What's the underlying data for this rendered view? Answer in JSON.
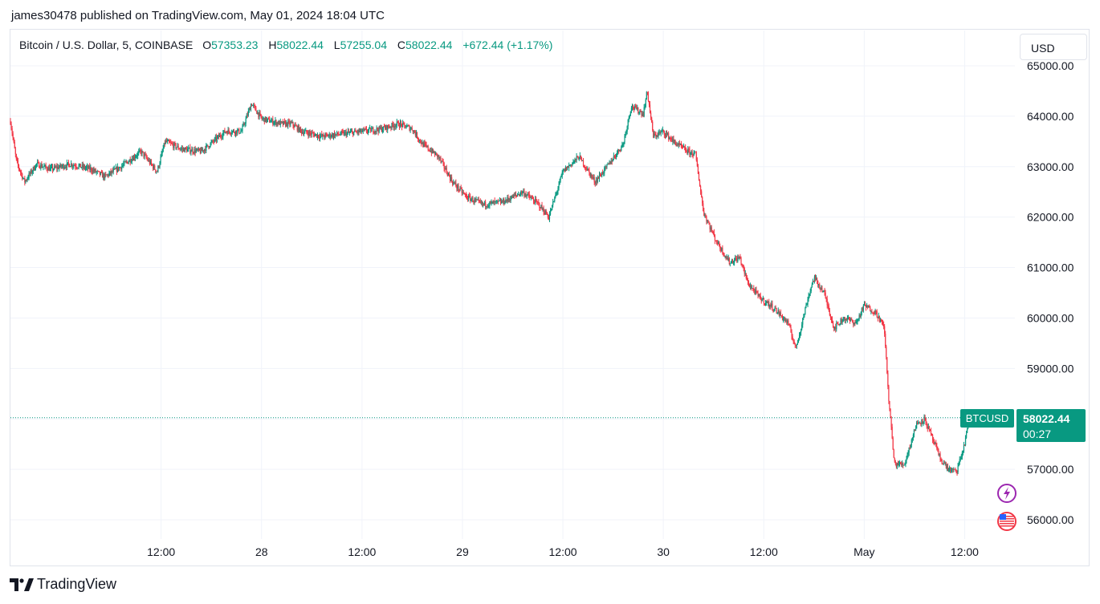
{
  "header": {
    "published_line": "james30478 published on TradingView.com, May 01, 2024 18:04 UTC"
  },
  "legend": {
    "symbol": "Bitcoin / U.S. Dollar, 5, COINBASE",
    "open_label": "O",
    "open": "57353.23",
    "high_label": "H",
    "high": "58022.44",
    "low_label": "L",
    "low": "57255.04",
    "close_label": "C",
    "close": "58022.44",
    "change": "+672.44 (+1.17%)"
  },
  "currency_button": "USD",
  "price_tag": {
    "symbol": "BTCUSD",
    "price": "58022.44",
    "countdown": "00:27"
  },
  "footer": {
    "brand": "TradingView"
  },
  "colors": {
    "up": "#089981",
    "down": "#f23645",
    "grid": "#f0f3fa",
    "text": "#131722"
  },
  "chart_data": {
    "type": "candlestick",
    "title": "Bitcoin / U.S. Dollar, 5, COINBASE",
    "ylim": [
      55800,
      65100
    ],
    "y_ticks": [
      56000,
      57000,
      58000,
      59000,
      60000,
      61000,
      62000,
      63000,
      64000,
      65000
    ],
    "y_tick_labels": [
      "56000.00",
      "57000.00",
      "58000.00",
      "59000.00",
      "60000.00",
      "61000.00",
      "62000.00",
      "63000.00",
      "64000.00",
      "65000.00"
    ],
    "x_ticks": [
      {
        "label": "12:00",
        "t": 0.5
      },
      {
        "label": "28",
        "t": 1.0
      },
      {
        "label": "12:00",
        "t": 1.5
      },
      {
        "label": "29",
        "t": 2.0
      },
      {
        "label": "12:00",
        "t": 2.5
      },
      {
        "label": "30",
        "t": 3.0
      },
      {
        "label": "12:00",
        "t": 3.5
      },
      {
        "label": "May",
        "t": 4.0
      },
      {
        "label": "12:00",
        "t": 4.5
      }
    ],
    "x_range": [
      -0.25,
      4.75
    ],
    "last_price": 58022.44,
    "grid": true,
    "path": [
      [
        -0.25,
        63900
      ],
      [
        -0.22,
        63100
      ],
      [
        -0.18,
        62700
      ],
      [
        -0.12,
        63050
      ],
      [
        -0.05,
        62950
      ],
      [
        0.05,
        63050
      ],
      [
        0.15,
        62950
      ],
      [
        0.22,
        62800
      ],
      [
        0.3,
        63000
      ],
      [
        0.4,
        63300
      ],
      [
        0.48,
        62900
      ],
      [
        0.52,
        63500
      ],
      [
        0.6,
        63350
      ],
      [
        0.7,
        63300
      ],
      [
        0.82,
        63700
      ],
      [
        0.9,
        63700
      ],
      [
        0.95,
        64250
      ],
      [
        1.0,
        63950
      ],
      [
        1.1,
        63850
      ],
      [
        1.15,
        63850
      ],
      [
        1.2,
        63700
      ],
      [
        1.3,
        63600
      ],
      [
        1.4,
        63650
      ],
      [
        1.5,
        63700
      ],
      [
        1.6,
        63750
      ],
      [
        1.68,
        63850
      ],
      [
        1.75,
        63750
      ],
      [
        1.8,
        63450
      ],
      [
        1.88,
        63200
      ],
      [
        1.95,
        62700
      ],
      [
        2.02,
        62400
      ],
      [
        2.1,
        62250
      ],
      [
        2.2,
        62300
      ],
      [
        2.3,
        62500
      ],
      [
        2.38,
        62250
      ],
      [
        2.43,
        62000
      ],
      [
        2.5,
        62900
      ],
      [
        2.58,
        63200
      ],
      [
        2.66,
        62700
      ],
      [
        2.72,
        63000
      ],
      [
        2.8,
        63450
      ],
      [
        2.84,
        64200
      ],
      [
        2.9,
        64050
      ],
      [
        2.92,
        64500
      ],
      [
        2.95,
        63600
      ],
      [
        3.0,
        63700
      ],
      [
        3.05,
        63500
      ],
      [
        3.12,
        63300
      ],
      [
        3.16,
        63250
      ],
      [
        3.2,
        62100
      ],
      [
        3.26,
        61550
      ],
      [
        3.33,
        61100
      ],
      [
        3.38,
        61200
      ],
      [
        3.42,
        60700
      ],
      [
        3.48,
        60400
      ],
      [
        3.55,
        60200
      ],
      [
        3.62,
        59900
      ],
      [
        3.66,
        59400
      ],
      [
        3.72,
        60400
      ],
      [
        3.75,
        60800
      ],
      [
        3.8,
        60500
      ],
      [
        3.85,
        59800
      ],
      [
        3.9,
        60000
      ],
      [
        3.96,
        59900
      ],
      [
        4.0,
        60250
      ],
      [
        4.06,
        60100
      ],
      [
        4.1,
        59800
      ],
      [
        4.12,
        58500
      ],
      [
        4.15,
        57100
      ],
      [
        4.2,
        57100
      ],
      [
        4.26,
        57900
      ],
      [
        4.3,
        58000
      ],
      [
        4.34,
        57600
      ],
      [
        4.38,
        57200
      ],
      [
        4.42,
        57000
      ],
      [
        4.46,
        56950
      ],
      [
        4.5,
        57500
      ],
      [
        4.52,
        58022.44
      ]
    ]
  }
}
